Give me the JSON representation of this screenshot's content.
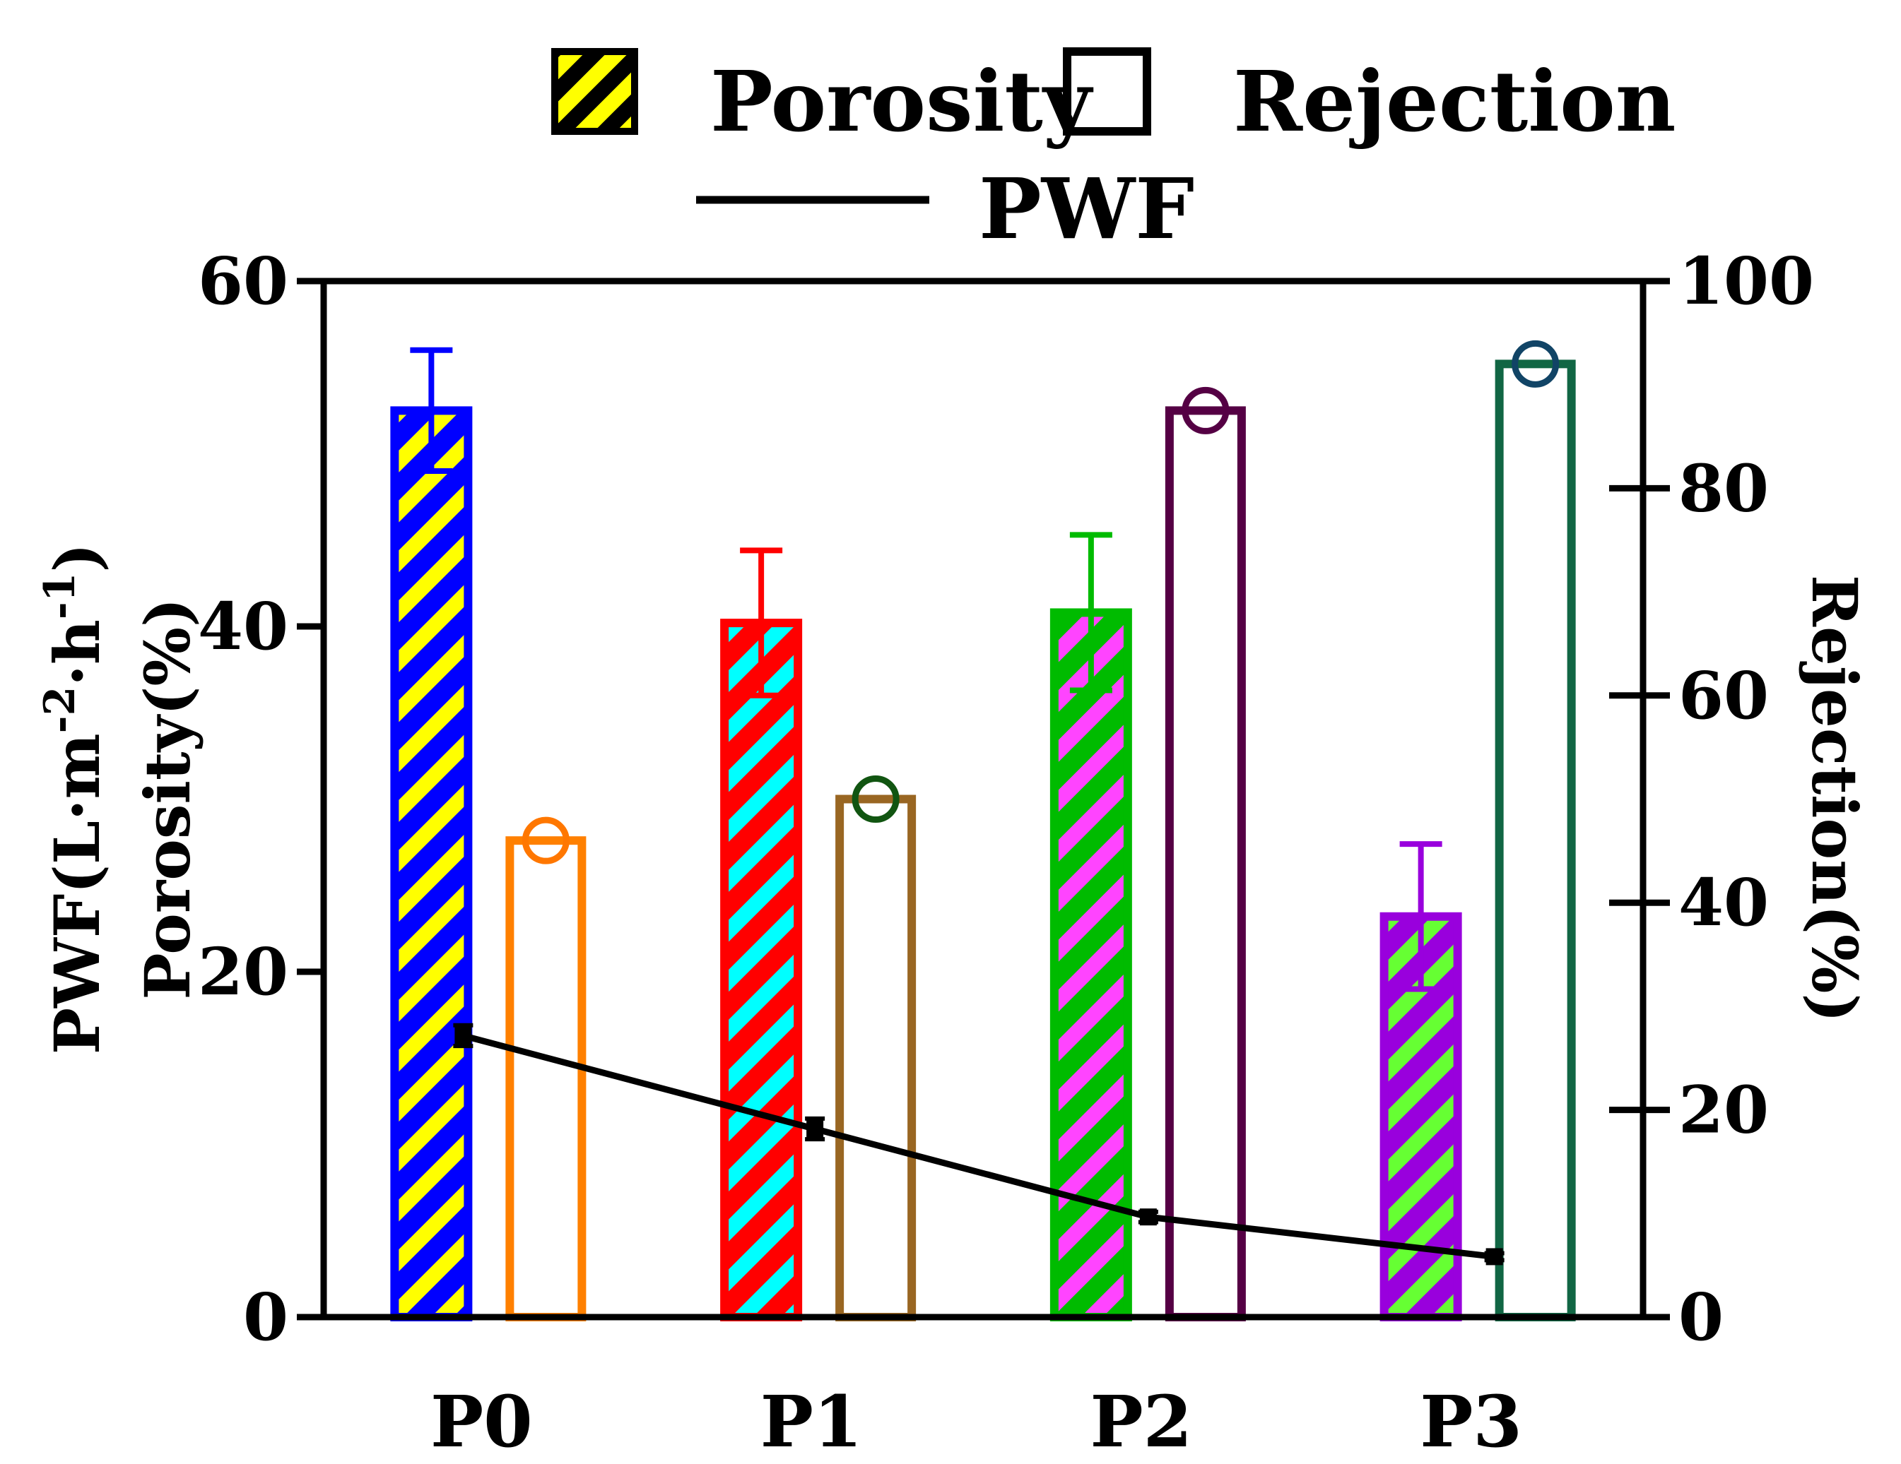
{
  "chart_data": {
    "type": "bar",
    "categories": [
      "P0",
      "P1",
      "P2",
      "P3"
    ],
    "left_axis": {
      "title_line1": "PWF(L·m",
      "title_sup1": "-2",
      "title_mid": "·h",
      "title_sup2": "-1",
      "title_end": ")",
      "title_line2": "Porosity(%)",
      "range": [
        0,
        60
      ],
      "ticks": [
        0,
        20,
        40,
        60
      ]
    },
    "right_axis": {
      "title": "Rejection(%)",
      "range": [
        0,
        100
      ],
      "ticks": [
        0,
        20,
        40,
        60,
        80,
        100
      ]
    },
    "legend": {
      "porosity": "Porosity",
      "rejection": "Rejection",
      "pwf": "PWF",
      "placement": "top"
    },
    "series": [
      {
        "name": "Porosity",
        "axis": "left",
        "values": [
          52.5,
          40.2,
          40.8,
          23.2
        ],
        "errors": [
          3.5,
          4.2,
          4.5,
          4.2
        ],
        "colors": [
          {
            "edge": "#0000ff",
            "stripe": "#ffff00"
          },
          {
            "edge": "#ff0000",
            "stripe": "#00ffff"
          },
          {
            "edge": "#00bb00",
            "stripe": "#ff44ff"
          },
          {
            "edge": "#9900dd",
            "stripe": "#66ff33"
          }
        ]
      },
      {
        "name": "Rejection",
        "axis": "right",
        "values": [
          46,
          50,
          87.5,
          92
        ],
        "colors": [
          "#ff8000",
          "#996622",
          "#550044",
          "#116644"
        ],
        "marker_colors": [
          "#ff7700",
          "#115511",
          "#550044",
          "#114466"
        ]
      },
      {
        "name": "PWF",
        "axis": "left",
        "values": [
          16.3,
          10.9,
          5.8,
          3.5
        ],
        "errors": [
          0.6,
          0.6,
          0.3,
          0.2
        ],
        "color": "#000000"
      }
    ]
  }
}
